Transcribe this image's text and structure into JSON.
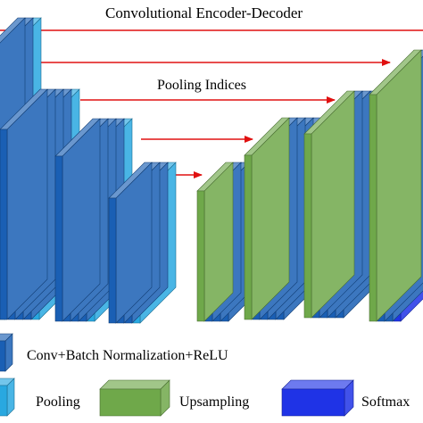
{
  "diagram": {
    "title": "Convolutional Encoder-Decoder",
    "pooling_indices_label": "Pooling Indices",
    "legend": {
      "conv": "Conv+Batch Normalization+ReLU",
      "pooling": "Pooling",
      "upsampling": "Upsampling",
      "softmax": "Softmax"
    },
    "colors": {
      "conv": "#1a5fb4",
      "pooling": "#29a8e0",
      "upsampling": "#6fa84a",
      "softmax": "#1f33e6",
      "arrow": "#e01010"
    }
  }
}
